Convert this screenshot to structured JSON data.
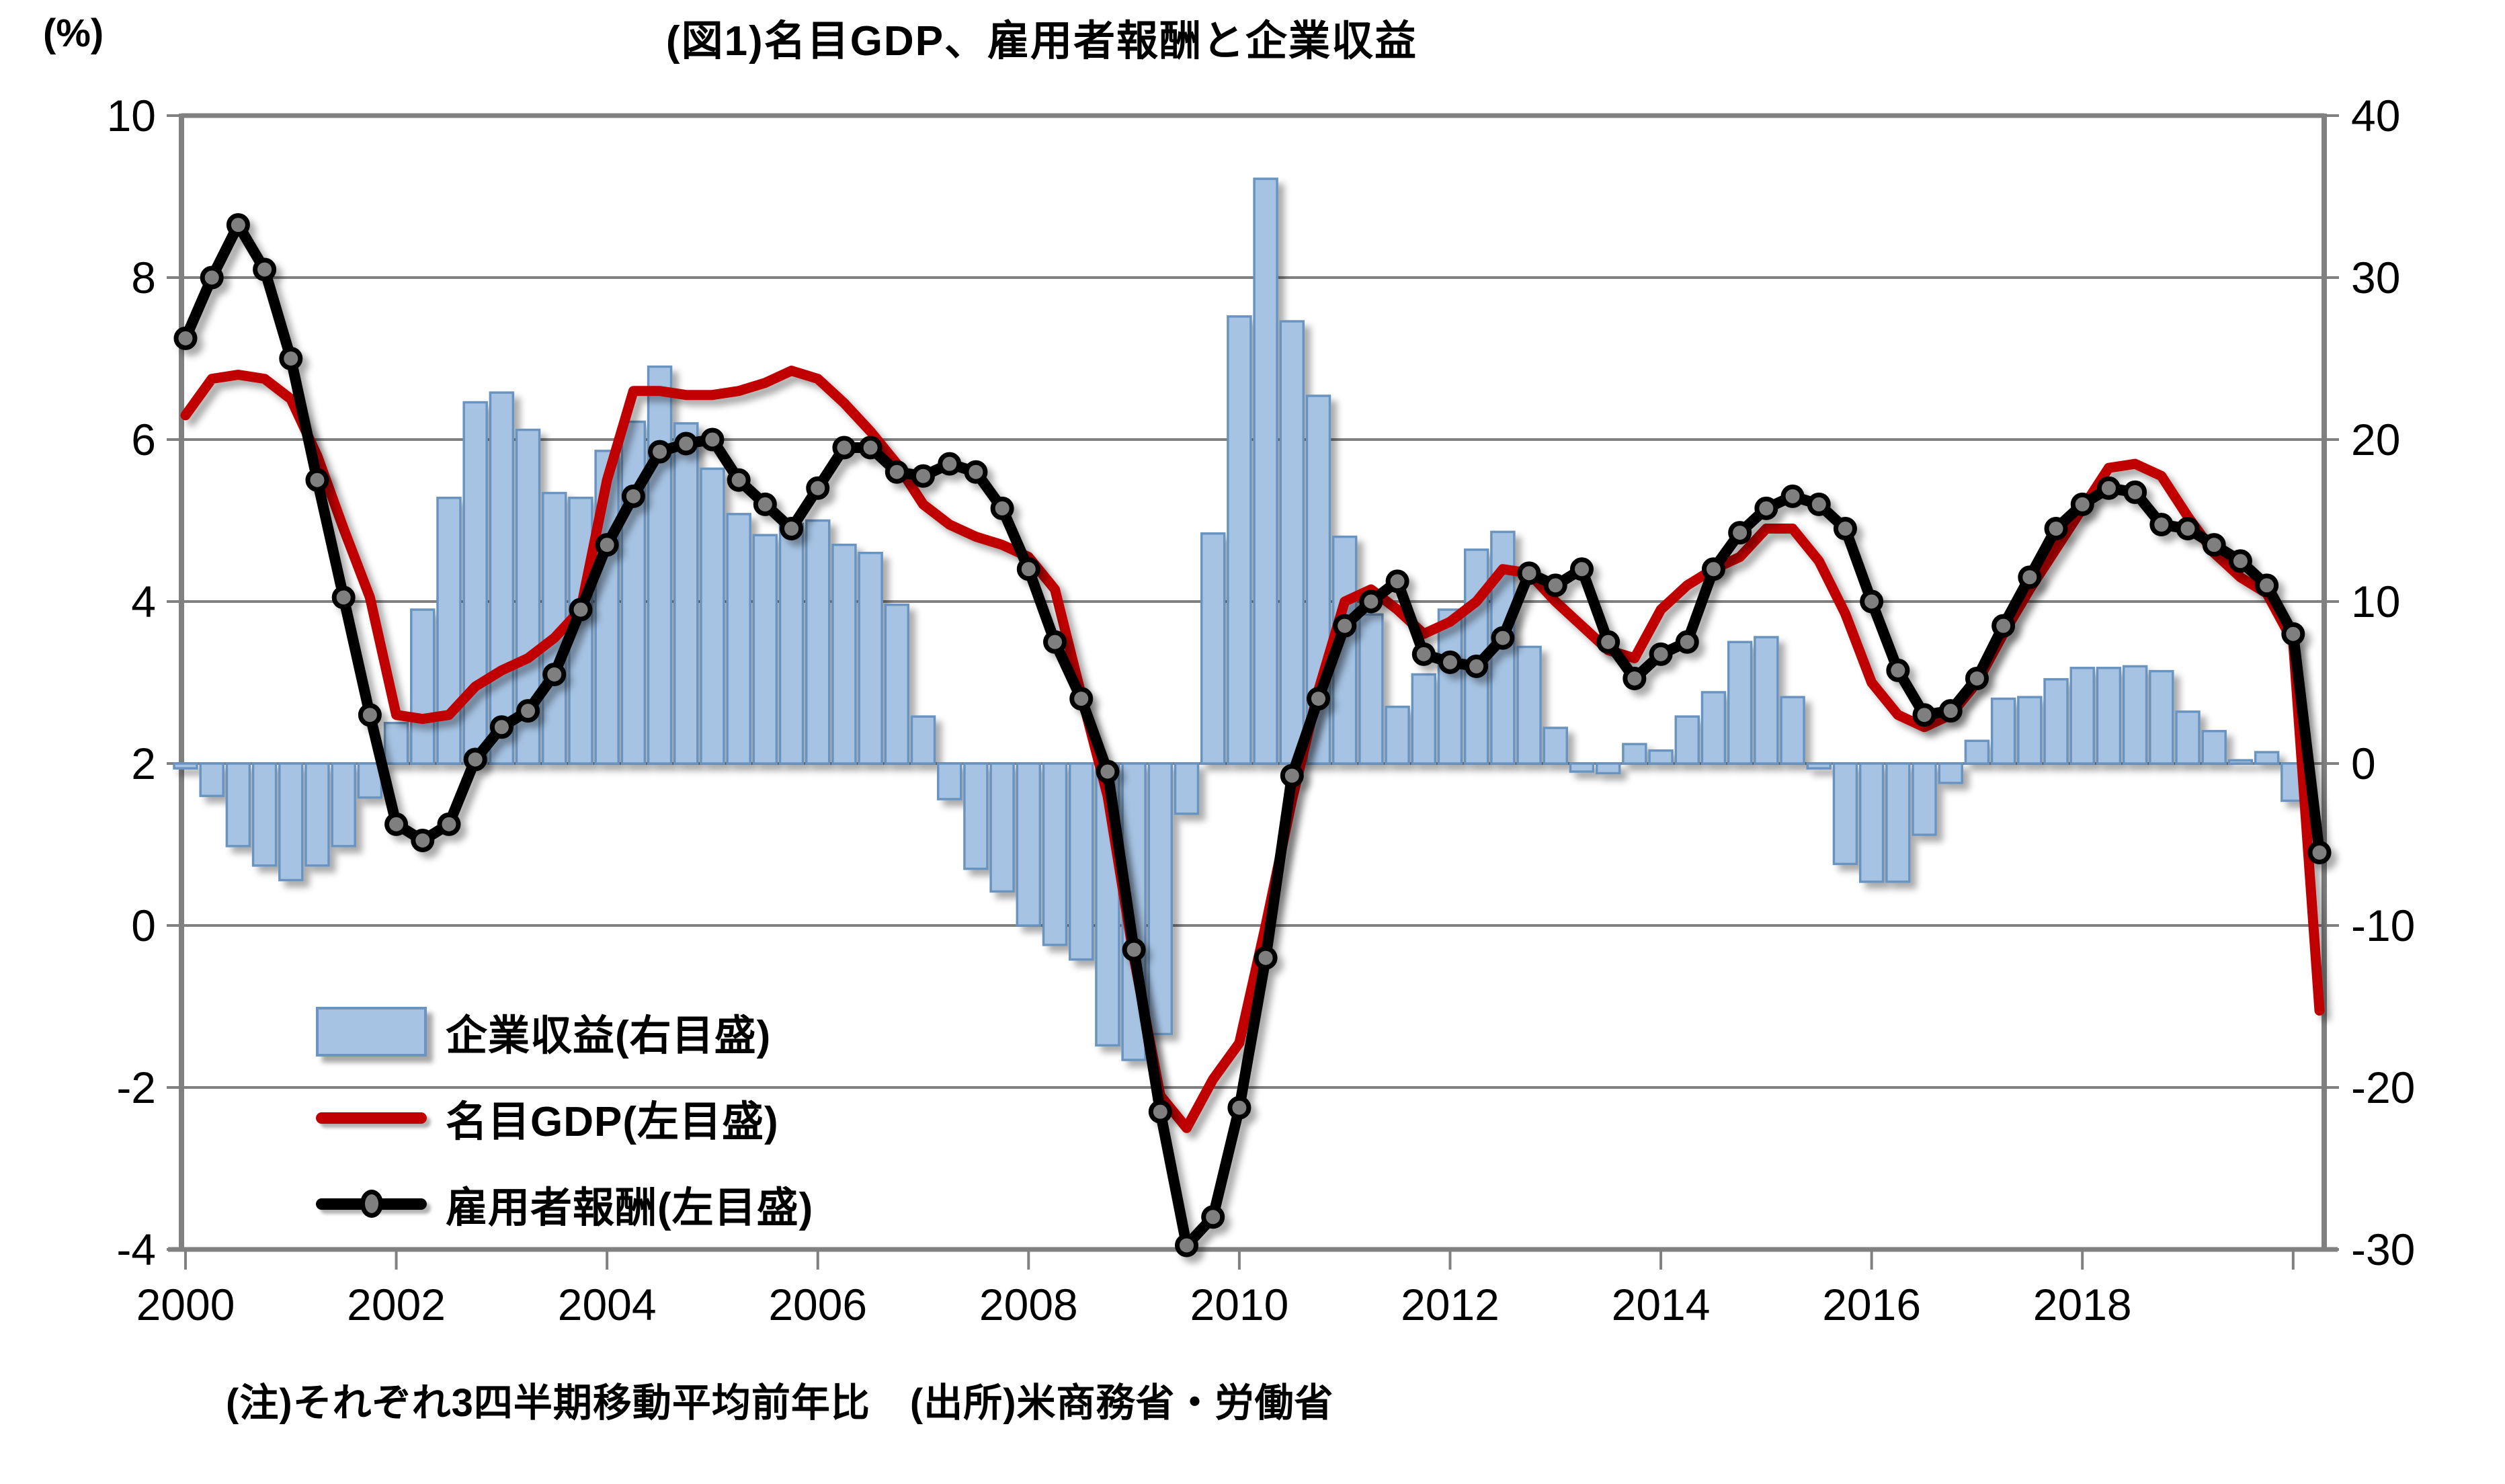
{
  "title": "(図1)名目GDP、雇用者報酬と企業収益",
  "y_left_unit_label": "(%)",
  "note": "(注)それぞれ3四半期移動平均前年比　(出所)米商務省・労働省",
  "legend": {
    "items": [
      {
        "label": "企業収益(右目盛)",
        "series": "corporate_profits",
        "swatch": "bar"
      },
      {
        "label": "名目GDP(左目盛)",
        "series": "nominal_gdp",
        "swatch": "red-line"
      },
      {
        "label": "雇用者報酬(左目盛)",
        "series": "employee_compensation",
        "swatch": "black-line-marker"
      }
    ]
  },
  "colors": {
    "bar_fill": "#A6C3E3",
    "bar_border": "#6B94C0",
    "gdp_line": "#C00000",
    "compensation_line": "#000000",
    "marker_fill": "#7F7F7F",
    "grid": "#808080",
    "axis": "#808080",
    "text": "#000000",
    "background": "#FFFFFF"
  },
  "chart_data": {
    "type": "combo",
    "frequency": "quarterly",
    "x_start": "2000Q1",
    "x_end": "2020Q2",
    "grid": "horizontal-on",
    "legend_position": "inside-lower-left",
    "left_axis": {
      "label": "(%)",
      "min": -4,
      "max": 10,
      "step": 2,
      "ticks": [
        10,
        8,
        6,
        4,
        2,
        0,
        -2,
        -4
      ]
    },
    "right_axis": {
      "min": -30,
      "max": 40,
      "step": 10,
      "ticks": [
        40,
        30,
        20,
        10,
        0,
        -10,
        -20,
        -30
      ]
    },
    "bar_baseline": {
      "left_value": 2,
      "right_value": 0
    },
    "x_ticks": {
      "labeled_years": [
        2000,
        2002,
        2004,
        2006,
        2008,
        2010,
        2012,
        2014,
        2016,
        2018
      ],
      "unlabeled_tick_years": [
        2020
      ]
    },
    "categories": [
      "2000Q1",
      "2000Q2",
      "2000Q3",
      "2000Q4",
      "2001Q1",
      "2001Q2",
      "2001Q3",
      "2001Q4",
      "2002Q1",
      "2002Q2",
      "2002Q3",
      "2002Q4",
      "2003Q1",
      "2003Q2",
      "2003Q3",
      "2003Q4",
      "2004Q1",
      "2004Q2",
      "2004Q3",
      "2004Q4",
      "2005Q1",
      "2005Q2",
      "2005Q3",
      "2005Q4",
      "2006Q1",
      "2006Q2",
      "2006Q3",
      "2006Q4",
      "2007Q1",
      "2007Q2",
      "2007Q3",
      "2007Q4",
      "2008Q1",
      "2008Q2",
      "2008Q3",
      "2008Q4",
      "2009Q1",
      "2009Q2",
      "2009Q3",
      "2009Q4",
      "2010Q1",
      "2010Q2",
      "2010Q3",
      "2010Q4",
      "2011Q1",
      "2011Q2",
      "2011Q3",
      "2011Q4",
      "2012Q1",
      "2012Q2",
      "2012Q3",
      "2012Q4",
      "2013Q1",
      "2013Q2",
      "2013Q3",
      "2013Q4",
      "2014Q1",
      "2014Q2",
      "2014Q3",
      "2014Q4",
      "2015Q1",
      "2015Q2",
      "2015Q3",
      "2015Q4",
      "2016Q1",
      "2016Q2",
      "2016Q3",
      "2016Q4",
      "2017Q1",
      "2017Q2",
      "2017Q3",
      "2017Q4",
      "2018Q1",
      "2018Q2",
      "2018Q3",
      "2018Q4",
      "2019Q1",
      "2019Q2",
      "2019Q3",
      "2019Q4",
      "2020Q1",
      "2020Q2"
    ],
    "series": [
      {
        "name": "企業収益(右目盛)",
        "type": "bar",
        "axis": "right",
        "values": [
          -0.3,
          -2.0,
          -5.1,
          -6.3,
          -7.2,
          -6.3,
          -5.1,
          -2.1,
          2.5,
          9.5,
          16.4,
          22.3,
          22.9,
          20.6,
          16.7,
          16.4,
          19.3,
          21.1,
          24.5,
          21.0,
          18.2,
          15.4,
          14.1,
          14.8,
          15.0,
          13.5,
          13.0,
          9.8,
          2.9,
          -2.2,
          -6.5,
          -7.9,
          -10.0,
          -11.2,
          -12.1,
          -17.4,
          -18.3,
          -16.7,
          -3.1,
          14.2,
          27.6,
          36.1,
          27.3,
          22.7,
          14.0,
          9.2,
          3.5,
          5.5,
          9.5,
          13.2,
          14.3,
          7.2,
          2.2,
          -0.5,
          -0.6,
          1.2,
          0.8,
          2.9,
          4.4,
          7.5,
          7.8,
          4.1,
          -0.3,
          -6.2,
          -7.3,
          -7.3,
          -4.4,
          -1.2,
          1.4,
          4.0,
          4.1,
          5.2,
          5.9,
          5.9,
          6.0,
          5.7,
          3.2,
          2.0,
          0.2,
          0.7,
          -2.3,
          null
        ]
      },
      {
        "name": "名目GDP(左目盛)",
        "type": "line",
        "axis": "left",
        "marker": false,
        "values": [
          6.3,
          6.75,
          6.8,
          6.75,
          6.5,
          5.8,
          4.9,
          4.05,
          2.6,
          2.55,
          2.6,
          2.95,
          3.15,
          3.3,
          3.55,
          3.9,
          5.5,
          6.6,
          6.6,
          6.55,
          6.55,
          6.6,
          6.7,
          6.85,
          6.75,
          6.45,
          6.1,
          5.7,
          5.2,
          4.95,
          4.8,
          4.7,
          4.55,
          4.15,
          2.85,
          1.6,
          -0.4,
          -2.1,
          -2.5,
          -1.9,
          -1.45,
          0.0,
          1.55,
          2.9,
          4.0,
          4.15,
          3.9,
          3.6,
          3.75,
          4.0,
          4.4,
          4.35,
          4.0,
          3.7,
          3.4,
          3.3,
          3.9,
          4.2,
          4.4,
          4.55,
          4.9,
          4.9,
          4.5,
          3.85,
          3.0,
          2.6,
          2.45,
          2.6,
          3.0,
          3.6,
          4.15,
          4.65,
          5.15,
          5.65,
          5.7,
          5.55,
          5.05,
          4.6,
          4.3,
          4.1,
          3.5,
          -1.05
        ]
      },
      {
        "name": "雇用者報酬(左目盛)",
        "type": "line",
        "axis": "left",
        "marker": true,
        "values": [
          7.25,
          8.0,
          8.65,
          8.1,
          7.0,
          5.5,
          4.05,
          2.6,
          1.25,
          1.05,
          1.25,
          2.05,
          2.45,
          2.65,
          3.1,
          3.9,
          4.7,
          5.3,
          5.85,
          5.95,
          6.0,
          5.5,
          5.2,
          4.9,
          5.4,
          5.9,
          5.9,
          5.6,
          5.55,
          5.7,
          5.6,
          5.15,
          4.4,
          3.5,
          2.8,
          1.9,
          -0.3,
          -2.3,
          -3.95,
          -3.6,
          -2.25,
          -0.4,
          1.85,
          2.8,
          3.7,
          4.0,
          4.25,
          3.35,
          3.25,
          3.2,
          3.55,
          4.35,
          4.2,
          4.4,
          3.5,
          3.05,
          3.35,
          3.5,
          4.4,
          4.85,
          5.15,
          5.3,
          5.2,
          4.9,
          4.0,
          3.15,
          2.6,
          2.65,
          3.05,
          3.7,
          4.3,
          4.9,
          5.2,
          5.4,
          5.35,
          4.95,
          4.9,
          4.7,
          4.5,
          4.2,
          3.6,
          0.9
        ]
      }
    ]
  }
}
